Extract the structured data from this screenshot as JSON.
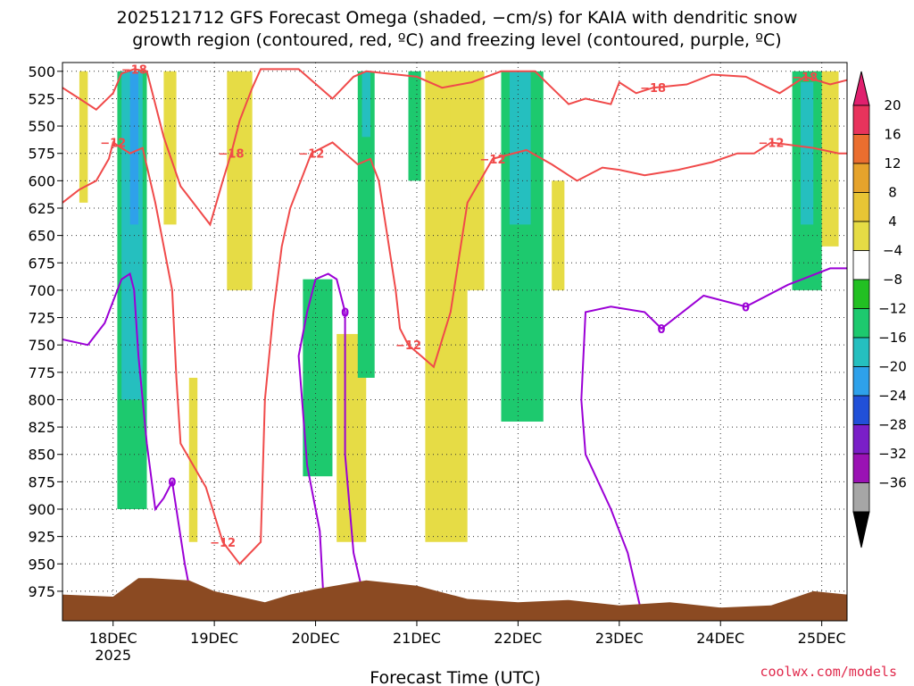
{
  "chart_data": {
    "type": "heatmap",
    "title_line1": "2025121712 GFS Forecast Omega (shaded, −cm/s) for KAIA with dendritic snow",
    "title_line2": "growth region (contoured, red, ºC) and freezing level (contoured, purple, ºC)",
    "xlabel": "Forecast Time (UTC)",
    "x_range_hours": [
      -12,
      174
    ],
    "x_ticks": [
      {
        "h": 0,
        "label": "18DEC",
        "sub": "2025"
      },
      {
        "h": 24,
        "label": "19DEC",
        "sub": ""
      },
      {
        "h": 48,
        "label": "20DEC",
        "sub": ""
      },
      {
        "h": 72,
        "label": "21DEC",
        "sub": ""
      },
      {
        "h": 96,
        "label": "22DEC",
        "sub": ""
      },
      {
        "h": 120,
        "label": "23DEC",
        "sub": ""
      },
      {
        "h": 144,
        "label": "24DEC",
        "sub": ""
      },
      {
        "h": 168,
        "label": "25DEC",
        "sub": ""
      }
    ],
    "y_levels_hpa": [
      500,
      525,
      550,
      575,
      600,
      625,
      650,
      675,
      700,
      725,
      750,
      775,
      800,
      825,
      850,
      875,
      900,
      925,
      950,
      975
    ],
    "y_range_hpa": [
      492,
      1002
    ],
    "colorbar": {
      "labels": [
        "20",
        "16",
        "12",
        "8",
        "4",
        "−4",
        "−8",
        "−12",
        "−16",
        "−20",
        "−24",
        "−28",
        "−32",
        "−36"
      ],
      "colors": [
        "#e8335c",
        "#ea6e2f",
        "#e6a32c",
        "#e8c535",
        "#e6dc45",
        "#ffffff",
        "#22c022",
        "#1dc96e",
        "#25bfbf",
        "#2ea1ea",
        "#2150d8",
        "#7a1fc8",
        "#9a12b4",
        "#a6a6a6"
      ],
      "over_color": "#e0206e",
      "under_color": "#000000"
    },
    "contour_labels": {
      "dgz_cold": "−18",
      "dgz_warm": "−12",
      "freezing": "0"
    },
    "colors": {
      "dgz": "#f04a4a",
      "freezing": "#9b00d6",
      "terrain": "#8b4a22",
      "omega_up_weak": "#22c022",
      "omega_up_mod": "#1dc96e",
      "omega_up_strong": "#25bfbf",
      "omega_up_vstrong": "#2ea1ea",
      "omega_down": "#e6dc45"
    },
    "upward_motion_regions": [
      {
        "t0": 1,
        "t1": 8,
        "p0": 500,
        "p1": 900,
        "value": -10
      },
      {
        "t0": 2,
        "t1": 7,
        "p0": 500,
        "p1": 800,
        "value": -14
      },
      {
        "t0": 4,
        "t1": 6,
        "p0": 500,
        "p1": 640,
        "value": -20
      },
      {
        "t0": 45,
        "t1": 52,
        "p0": 690,
        "p1": 870,
        "value": -8
      },
      {
        "t0": 58,
        "t1": 62,
        "p0": 500,
        "p1": 780,
        "value": -8
      },
      {
        "t0": 59,
        "t1": 61,
        "p0": 500,
        "p1": 560,
        "value": -16
      },
      {
        "t0": 70,
        "t1": 73,
        "p0": 500,
        "p1": 600,
        "value": -8
      },
      {
        "t0": 92,
        "t1": 102,
        "p0": 500,
        "p1": 820,
        "value": -8
      },
      {
        "t0": 94,
        "t1": 99,
        "p0": 500,
        "p1": 640,
        "value": -14
      },
      {
        "t0": 161,
        "t1": 168,
        "p0": 500,
        "p1": 700,
        "value": -8
      },
      {
        "t0": 163,
        "t1": 166,
        "p0": 510,
        "p1": 640,
        "value": -14
      }
    ],
    "downward_motion_regions": [
      {
        "t0": -8,
        "t1": -6,
        "p0": 500,
        "p1": 620,
        "value": 6
      },
      {
        "t0": 12,
        "t1": 15,
        "p0": 500,
        "p1": 640,
        "value": 6
      },
      {
        "t0": 18,
        "t1": 20,
        "p0": 780,
        "p1": 930,
        "value": 5
      },
      {
        "t0": 27,
        "t1": 33,
        "p0": 500,
        "p1": 700,
        "value": 6
      },
      {
        "t0": 53,
        "t1": 60,
        "p0": 740,
        "p1": 930,
        "value": 6
      },
      {
        "t0": 74,
        "t1": 84,
        "p0": 500,
        "p1": 930,
        "value": 7
      },
      {
        "t0": 80,
        "t1": 88,
        "p0": 500,
        "p1": 700,
        "value": 6
      },
      {
        "t0": 104,
        "t1": 107,
        "p0": 600,
        "p1": 700,
        "value": 5
      },
      {
        "t0": 166,
        "t1": 172,
        "p0": 500,
        "p1": 660,
        "value": 6
      }
    ],
    "dgz_minus18_contour": [
      [
        -12,
        515
      ],
      [
        -8,
        525
      ],
      [
        -4,
        535
      ],
      [
        0,
        520
      ],
      [
        2,
        502
      ],
      [
        5,
        498
      ],
      [
        8,
        500
      ],
      [
        12,
        560
      ],
      [
        16,
        605
      ],
      [
        20,
        625
      ],
      [
        23,
        640
      ],
      [
        26,
        600
      ],
      [
        28,
        575
      ],
      [
        30,
        545
      ],
      [
        33,
        515
      ],
      [
        35,
        498
      ],
      [
        44,
        498
      ],
      [
        52,
        525
      ],
      [
        57,
        505
      ],
      [
        60,
        500
      ],
      [
        72,
        505
      ],
      [
        78,
        515
      ],
      [
        85,
        510
      ],
      [
        92,
        500
      ],
      [
        100,
        500
      ],
      [
        104,
        515
      ],
      [
        108,
        530
      ],
      [
        112,
        525
      ],
      [
        118,
        530
      ],
      [
        120,
        510
      ],
      [
        124,
        520
      ],
      [
        128,
        515
      ],
      [
        136,
        512
      ],
      [
        142,
        503
      ],
      [
        150,
        505
      ],
      [
        158,
        520
      ],
      [
        164,
        505
      ],
      [
        170,
        512
      ],
      [
        174,
        508
      ]
    ],
    "dgz_minus12_contour": [
      [
        -12,
        620
      ],
      [
        -8,
        608
      ],
      [
        -4,
        600
      ],
      [
        -1,
        580
      ],
      [
        0,
        565
      ],
      [
        4,
        575
      ],
      [
        7,
        570
      ],
      [
        10,
        620
      ],
      [
        14,
        700
      ],
      [
        15,
        780
      ],
      [
        16,
        840
      ],
      [
        19,
        860
      ],
      [
        22,
        880
      ],
      [
        26,
        930
      ],
      [
        30,
        950
      ],
      [
        35,
        930
      ],
      [
        36,
        800
      ],
      [
        38,
        720
      ],
      [
        40,
        660
      ],
      [
        42,
        625
      ],
      [
        47,
        575
      ],
      [
        52,
        565
      ],
      [
        58,
        585
      ],
      [
        61,
        580
      ],
      [
        63,
        600
      ],
      [
        65,
        650
      ],
      [
        67,
        700
      ],
      [
        68,
        735
      ],
      [
        70,
        750
      ],
      [
        73,
        760
      ],
      [
        76,
        770
      ],
      [
        80,
        720
      ],
      [
        84,
        620
      ],
      [
        90,
        580
      ],
      [
        98,
        572
      ],
      [
        104,
        585
      ],
      [
        110,
        600
      ],
      [
        116,
        588
      ],
      [
        120,
        590
      ],
      [
        126,
        595
      ],
      [
        134,
        590
      ],
      [
        142,
        583
      ],
      [
        148,
        575
      ],
      [
        152,
        575
      ],
      [
        156,
        565
      ],
      [
        166,
        570
      ],
      [
        172,
        575
      ],
      [
        174,
        575
      ]
    ],
    "freezing_contour": [
      [
        -12,
        745
      ],
      [
        -6,
        750
      ],
      [
        -2,
        730
      ],
      [
        2,
        690
      ],
      [
        4,
        685
      ],
      [
        5,
        700
      ],
      [
        6,
        760
      ],
      [
        8,
        840
      ],
      [
        10,
        900
      ],
      [
        12,
        890
      ],
      [
        14,
        875
      ],
      [
        17,
        950
      ],
      [
        19,
        990
      ]
    ],
    "freezing_contour_2": [
      [
        50,
        990
      ],
      [
        49,
        920
      ],
      [
        46,
        860
      ],
      [
        44,
        760
      ],
      [
        46,
        720
      ],
      [
        48,
        690
      ],
      [
        51,
        685
      ],
      [
        53,
        690
      ],
      [
        55,
        720
      ],
      [
        55,
        800
      ],
      [
        55,
        850
      ],
      [
        57,
        940
      ],
      [
        60,
        990
      ]
    ],
    "freezing_contour_3": [
      [
        125,
        990
      ],
      [
        122,
        940
      ],
      [
        118,
        900
      ],
      [
        112,
        850
      ],
      [
        111,
        800
      ],
      [
        112,
        720
      ],
      [
        118,
        715
      ],
      [
        126,
        720
      ],
      [
        130,
        735
      ],
      [
        135,
        720
      ],
      [
        140,
        705
      ],
      [
        150,
        715
      ],
      [
        160,
        695
      ],
      [
        170,
        680
      ],
      [
        174,
        680
      ]
    ],
    "terrain_profile_hpa": [
      [
        -12,
        978
      ],
      [
        0,
        980
      ],
      [
        6,
        963
      ],
      [
        9,
        963
      ],
      [
        18,
        965
      ],
      [
        24,
        975
      ],
      [
        36,
        985
      ],
      [
        42,
        978
      ],
      [
        48,
        973
      ],
      [
        60,
        965
      ],
      [
        72,
        970
      ],
      [
        84,
        982
      ],
      [
        96,
        985
      ],
      [
        108,
        983
      ],
      [
        120,
        988
      ],
      [
        132,
        985
      ],
      [
        144,
        990
      ],
      [
        156,
        988
      ],
      [
        166,
        975
      ],
      [
        174,
        978
      ]
    ]
  },
  "credit": "coolwx.com/models"
}
